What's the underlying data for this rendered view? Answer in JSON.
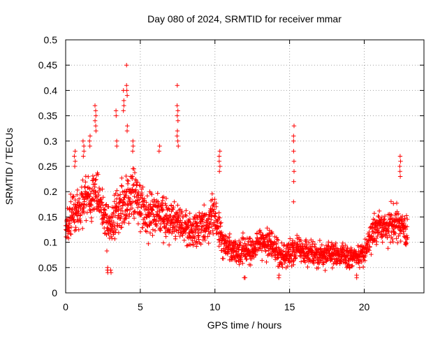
{
  "chart_data": {
    "type": "scatter",
    "title": "Day 080 of 2024, SRMTID for receiver mmar",
    "xlabel": "GPS time / hours",
    "ylabel": "SRMTID / TECUs",
    "xlim": [
      0,
      24
    ],
    "ylim": [
      0,
      0.5
    ],
    "x_ticks": [
      0,
      5,
      10,
      15,
      20
    ],
    "x_tick_labels": [
      "0",
      "5",
      "10",
      "15",
      "20"
    ],
    "y_ticks": [
      0,
      0.05,
      0.1,
      0.15,
      0.2,
      0.25,
      0.3,
      0.35,
      0.4,
      0.45,
      0.5
    ],
    "y_tick_labels": [
      "0",
      "0.05",
      "0.1",
      "0.15",
      "0.2",
      "0.25",
      "0.3",
      "0.35",
      "0.4",
      "0.45",
      "0.5"
    ],
    "grid": true,
    "marker": "+",
    "color": "#ff0000",
    "point_density_per_hour": 90,
    "envelope": {
      "hours": [
        0,
        0.5,
        1,
        1.5,
        2,
        2.5,
        3,
        3.5,
        4,
        4.5,
        5,
        5.5,
        6,
        6.5,
        7,
        7.5,
        8,
        8.5,
        9,
        9.5,
        10,
        10.5,
        11,
        11.5,
        12,
        12.5,
        13,
        13.5,
        14,
        14.5,
        15,
        15.5,
        16,
        16.5,
        17,
        17.5,
        18,
        18.5,
        19,
        19.5,
        20,
        20.5,
        21,
        21.5,
        22,
        22.5,
        22.9
      ],
      "mean": [
        0.12,
        0.16,
        0.17,
        0.19,
        0.2,
        0.16,
        0.13,
        0.15,
        0.18,
        0.2,
        0.17,
        0.15,
        0.16,
        0.15,
        0.14,
        0.14,
        0.13,
        0.12,
        0.13,
        0.14,
        0.16,
        0.1,
        0.09,
        0.085,
        0.085,
        0.09,
        0.1,
        0.1,
        0.085,
        0.075,
        0.08,
        0.085,
        0.08,
        0.08,
        0.075,
        0.08,
        0.075,
        0.08,
        0.07,
        0.07,
        0.08,
        0.12,
        0.13,
        0.13,
        0.14,
        0.13,
        0.12
      ],
      "spread": [
        0.04,
        0.05,
        0.05,
        0.06,
        0.06,
        0.06,
        0.05,
        0.06,
        0.06,
        0.06,
        0.05,
        0.05,
        0.05,
        0.05,
        0.04,
        0.04,
        0.04,
        0.04,
        0.04,
        0.05,
        0.05,
        0.04,
        0.035,
        0.035,
        0.035,
        0.035,
        0.04,
        0.04,
        0.035,
        0.03,
        0.035,
        0.035,
        0.03,
        0.03,
        0.03,
        0.03,
        0.03,
        0.03,
        0.025,
        0.025,
        0.03,
        0.04,
        0.04,
        0.04,
        0.045,
        0.04,
        0.035
      ]
    },
    "spikes": [
      {
        "hour": 0.6,
        "values": [
          0.28,
          0.27,
          0.26,
          0.25
        ]
      },
      {
        "hour": 1.2,
        "values": [
          0.29,
          0.3,
          0.28,
          0.27
        ]
      },
      {
        "hour": 1.6,
        "values": [
          0.31,
          0.3,
          0.29
        ]
      },
      {
        "hour": 2.0,
        "values": [
          0.37,
          0.36,
          0.35,
          0.34,
          0.33,
          0.32
        ]
      },
      {
        "hour": 3.4,
        "values": [
          0.36,
          0.35,
          0.3,
          0.29
        ]
      },
      {
        "hour": 3.9,
        "values": [
          0.4,
          0.38,
          0.37,
          0.36
        ]
      },
      {
        "hour": 4.1,
        "values": [
          0.45,
          0.41,
          0.4,
          0.39,
          0.33,
          0.32
        ]
      },
      {
        "hour": 4.5,
        "values": [
          0.3,
          0.29,
          0.28
        ]
      },
      {
        "hour": 6.3,
        "values": [
          0.29,
          0.28
        ]
      },
      {
        "hour": 7.5,
        "values": [
          0.41,
          0.37,
          0.36,
          0.35,
          0.34,
          0.32,
          0.31,
          0.3,
          0.29
        ]
      },
      {
        "hour": 10.3,
        "values": [
          0.28,
          0.27,
          0.26,
          0.25,
          0.24
        ]
      },
      {
        "hour": 15.3,
        "values": [
          0.33,
          0.31,
          0.3,
          0.28,
          0.26,
          0.24,
          0.22,
          0.18
        ]
      },
      {
        "hour": 22.4,
        "values": [
          0.27,
          0.26,
          0.25,
          0.24,
          0.23
        ]
      }
    ],
    "lows": [
      {
        "hour": 2.8,
        "values": [
          0.05,
          0.045,
          0.04
        ]
      },
      {
        "hour": 3.0,
        "values": [
          0.04,
          0.045
        ]
      },
      {
        "hour": 12.0,
        "values": [
          0.03,
          0.03
        ]
      },
      {
        "hour": 14.3,
        "values": [
          0.03,
          0.035
        ]
      },
      {
        "hour": 19.5,
        "values": [
          0.03,
          0.035
        ]
      }
    ]
  }
}
